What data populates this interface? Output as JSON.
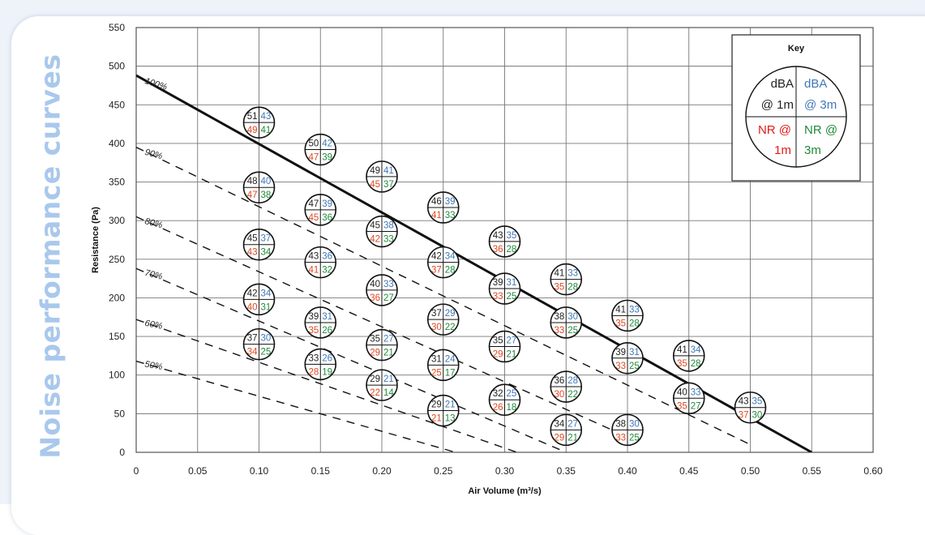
{
  "side_title": "Noise performance curves",
  "colors": {
    "side_title": "#a9c8ec",
    "dba_1m": "#222222",
    "dba_3m": "#3f78b8",
    "nr_1m": "#e04820",
    "nr_3m": "#1f8a3a",
    "key_nr_1m": "#e01b1b"
  },
  "key": {
    "title": "Key",
    "tl": [
      "dBA",
      "@ 1m"
    ],
    "tr": [
      "dBA",
      "@ 3m"
    ],
    "bl": [
      "NR @",
      "1m"
    ],
    "br": [
      "NR @",
      "3m"
    ]
  },
  "chart_data": {
    "type": "scatter",
    "title": "",
    "xlabel": "Air Volume (m³/s)",
    "ylabel": "Resistance (Pa)",
    "xlim": [
      0,
      0.6
    ],
    "ylim": [
      0,
      550
    ],
    "grid": true,
    "x_ticks": [
      "0",
      "0.05",
      "0.10",
      "0.15",
      "0.20",
      "0.25",
      "0.30",
      "0.35",
      "0.40",
      "0.45",
      "0.50",
      "0.55",
      "0.60"
    ],
    "y_ticks": [
      "0",
      "50",
      "100",
      "150",
      "200",
      "250",
      "300",
      "350",
      "400",
      "450",
      "500",
      "550"
    ],
    "curves": [
      {
        "label": "100%",
        "style": "solid",
        "points": [
          [
            0,
            488
          ],
          [
            0.55,
            0
          ]
        ]
      },
      {
        "label": "90%",
        "style": "dashed",
        "points": [
          [
            0,
            395
          ],
          [
            0.5,
            10
          ]
        ]
      },
      {
        "label": "80%",
        "style": "dashed",
        "points": [
          [
            0,
            305
          ],
          [
            0.4,
            20
          ]
        ]
      },
      {
        "label": "70%",
        "style": "dashed",
        "points": [
          [
            0,
            238
          ],
          [
            0.35,
            0
          ]
        ]
      },
      {
        "label": "60%",
        "style": "dashed",
        "points": [
          [
            0,
            172
          ],
          [
            0.31,
            0
          ]
        ]
      },
      {
        "label": "50%",
        "style": "dashed",
        "points": [
          [
            0,
            118
          ],
          [
            0.26,
            0
          ]
        ]
      }
    ],
    "points": [
      {
        "x": 0.1,
        "y": 427,
        "dba_1m": "51",
        "dba_3m": "43",
        "nr_1m": "49",
        "nr_3m": "41"
      },
      {
        "x": 0.1,
        "y": 343,
        "dba_1m": "48",
        "dba_3m": "40",
        "nr_1m": "47",
        "nr_3m": "38"
      },
      {
        "x": 0.1,
        "y": 269,
        "dba_1m": "45",
        "dba_3m": "37",
        "nr_1m": "43",
        "nr_3m": "34"
      },
      {
        "x": 0.1,
        "y": 198,
        "dba_1m": "42",
        "dba_3m": "34",
        "nr_1m": "40",
        "nr_3m": "31"
      },
      {
        "x": 0.1,
        "y": 140,
        "dba_1m": "37",
        "dba_3m": "30",
        "nr_1m": "34",
        "nr_3m": "25"
      },
      {
        "x": 0.15,
        "y": 392,
        "dba_1m": "50",
        "dba_3m": "42",
        "nr_1m": "47",
        "nr_3m": "39"
      },
      {
        "x": 0.15,
        "y": 314,
        "dba_1m": "47",
        "dba_3m": "39",
        "nr_1m": "45",
        "nr_3m": "36"
      },
      {
        "x": 0.15,
        "y": 246,
        "dba_1m": "43",
        "dba_3m": "36",
        "nr_1m": "41",
        "nr_3m": "32"
      },
      {
        "x": 0.15,
        "y": 168,
        "dba_1m": "39",
        "dba_3m": "31",
        "nr_1m": "35",
        "nr_3m": "26"
      },
      {
        "x": 0.15,
        "y": 114,
        "dba_1m": "33",
        "dba_3m": "26",
        "nr_1m": "28",
        "nr_3m": "19"
      },
      {
        "x": 0.2,
        "y": 357,
        "dba_1m": "49",
        "dba_3m": "41",
        "nr_1m": "45",
        "nr_3m": "37"
      },
      {
        "x": 0.2,
        "y": 286,
        "dba_1m": "45",
        "dba_3m": "38",
        "nr_1m": "42",
        "nr_3m": "33"
      },
      {
        "x": 0.2,
        "y": 210,
        "dba_1m": "40",
        "dba_3m": "33",
        "nr_1m": "36",
        "nr_3m": "27"
      },
      {
        "x": 0.2,
        "y": 139,
        "dba_1m": "35",
        "dba_3m": "27",
        "nr_1m": "29",
        "nr_3m": "21"
      },
      {
        "x": 0.2,
        "y": 87,
        "dba_1m": "29",
        "dba_3m": "21",
        "nr_1m": "22",
        "nr_3m": "14"
      },
      {
        "x": 0.25,
        "y": 317,
        "dba_1m": "46",
        "dba_3m": "39",
        "nr_1m": "41",
        "nr_3m": "33"
      },
      {
        "x": 0.25,
        "y": 246,
        "dba_1m": "42",
        "dba_3m": "34",
        "nr_1m": "37",
        "nr_3m": "28"
      },
      {
        "x": 0.25,
        "y": 172,
        "dba_1m": "37",
        "dba_3m": "29",
        "nr_1m": "30",
        "nr_3m": "22"
      },
      {
        "x": 0.25,
        "y": 113,
        "dba_1m": "31",
        "dba_3m": "24",
        "nr_1m": "25",
        "nr_3m": "17"
      },
      {
        "x": 0.25,
        "y": 54,
        "dba_1m": "29",
        "dba_3m": "21",
        "nr_1m": "21",
        "nr_3m": "13"
      },
      {
        "x": 0.3,
        "y": 273,
        "dba_1m": "43",
        "dba_3m": "35",
        "nr_1m": "36",
        "nr_3m": "28"
      },
      {
        "x": 0.3,
        "y": 212,
        "dba_1m": "39",
        "dba_3m": "31",
        "nr_1m": "33",
        "nr_3m": "25"
      },
      {
        "x": 0.3,
        "y": 137,
        "dba_1m": "35",
        "dba_3m": "27",
        "nr_1m": "29",
        "nr_3m": "21"
      },
      {
        "x": 0.3,
        "y": 68,
        "dba_1m": "32",
        "dba_3m": "25",
        "nr_1m": "26",
        "nr_3m": "18"
      },
      {
        "x": 0.35,
        "y": 224,
        "dba_1m": "41",
        "dba_3m": "33",
        "nr_1m": "35",
        "nr_3m": "28"
      },
      {
        "x": 0.35,
        "y": 168,
        "dba_1m": "38",
        "dba_3m": "30",
        "nr_1m": "33",
        "nr_3m": "25"
      },
      {
        "x": 0.35,
        "y": 85,
        "dba_1m": "36",
        "dba_3m": "28",
        "nr_1m": "30",
        "nr_3m": "22"
      },
      {
        "x": 0.35,
        "y": 29,
        "dba_1m": "34",
        "dba_3m": "27",
        "nr_1m": "29",
        "nr_3m": "21"
      },
      {
        "x": 0.4,
        "y": 177,
        "dba_1m": "41",
        "dba_3m": "33",
        "nr_1m": "35",
        "nr_3m": "28"
      },
      {
        "x": 0.4,
        "y": 122,
        "dba_1m": "39",
        "dba_3m": "31",
        "nr_1m": "33",
        "nr_3m": "25"
      },
      {
        "x": 0.4,
        "y": 29,
        "dba_1m": "38",
        "dba_3m": "30",
        "nr_1m": "33",
        "nr_3m": "25"
      },
      {
        "x": 0.45,
        "y": 125,
        "dba_1m": "41",
        "dba_3m": "34",
        "nr_1m": "35",
        "nr_3m": "28"
      },
      {
        "x": 0.45,
        "y": 70,
        "dba_1m": "40",
        "dba_3m": "33",
        "nr_1m": "35",
        "nr_3m": "27"
      },
      {
        "x": 0.5,
        "y": 58,
        "dba_1m": "43",
        "dba_3m": "35",
        "nr_1m": "37",
        "nr_3m": "30"
      }
    ]
  }
}
